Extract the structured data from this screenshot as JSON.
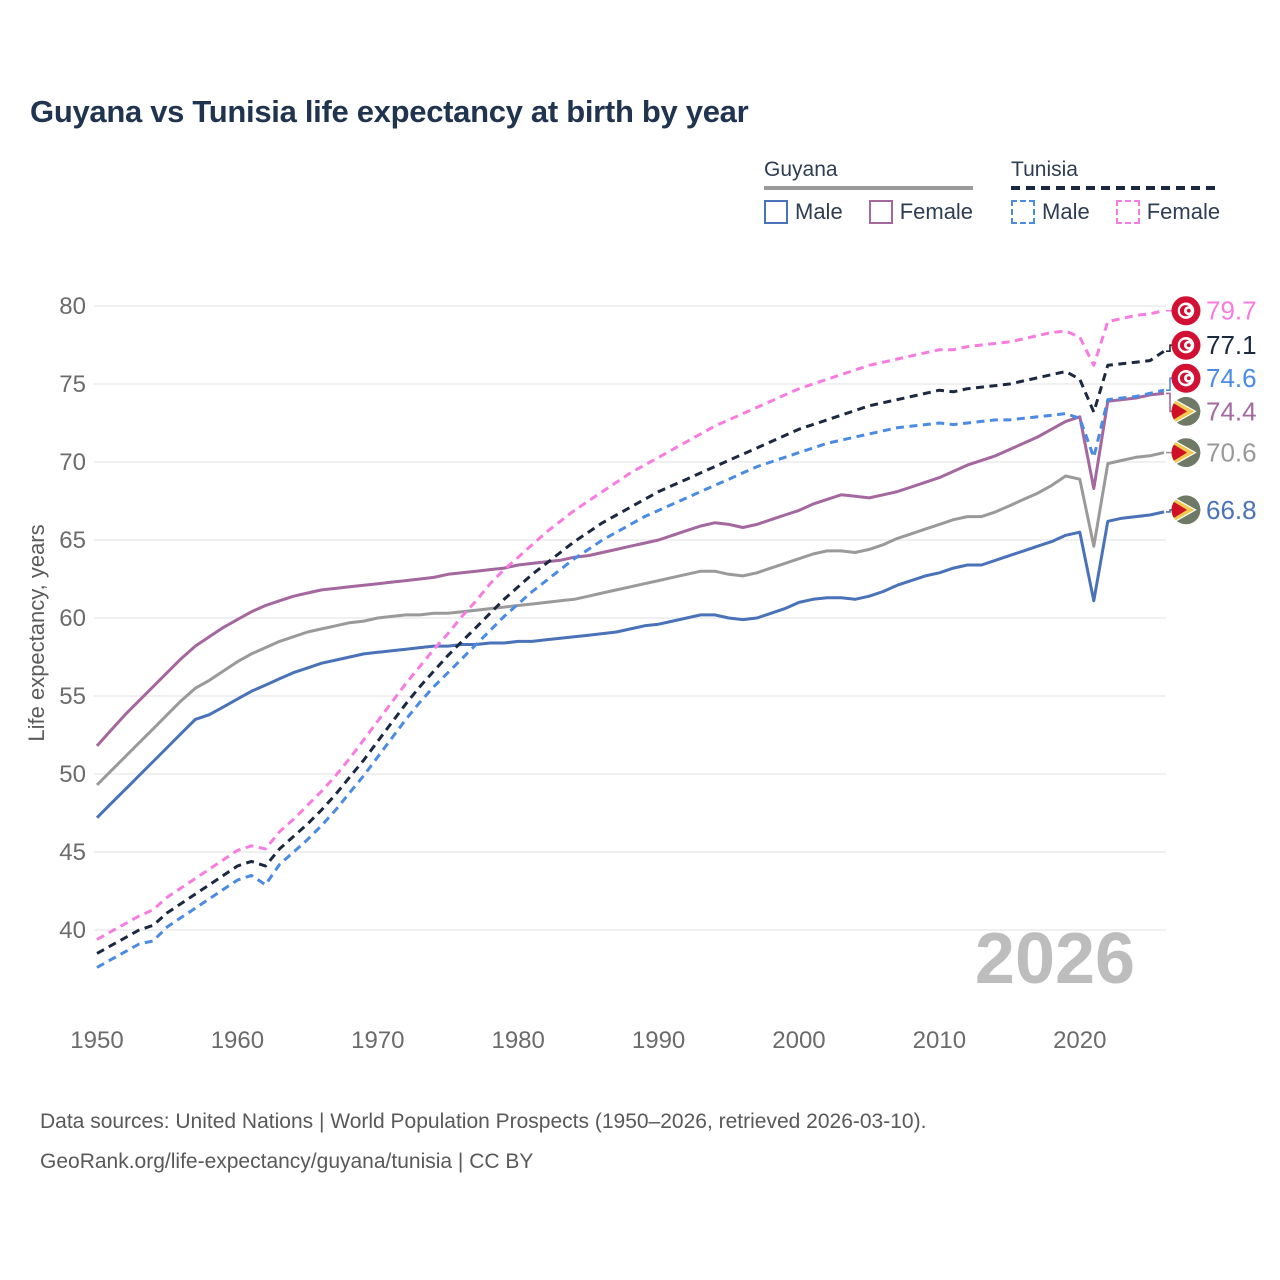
{
  "page": {
    "title": "Guyana vs Tunisia life expectancy at birth by year"
  },
  "legend": {
    "groups": [
      {
        "label": "Guyana",
        "line_style": "solid",
        "underline_color": "#9a9a9a",
        "items": [
          {
            "label": "Male",
            "color": "#4a72b8"
          },
          {
            "label": "Female",
            "color": "#a4679e"
          }
        ]
      },
      {
        "label": "Tunisia",
        "line_style": "dashed",
        "underline_color": "#1b2940",
        "items": [
          {
            "label": "Male",
            "color": "#4a8be4"
          },
          {
            "label": "Female",
            "color": "#f87ce0"
          }
        ]
      }
    ]
  },
  "axes": {
    "y_title": "Life expectancy, years",
    "y_ticks": [
      40,
      45,
      50,
      55,
      60,
      65,
      70,
      75,
      80
    ],
    "x_ticks": [
      1950,
      1960,
      1970,
      1980,
      1990,
      2000,
      2010,
      2020
    ]
  },
  "watermark": "2026",
  "footer": {
    "line1": "Data sources: United Nations | World Population Prospects (1950–2026, retrieved 2026-03-10).",
    "link": "GeoRank.org/life-expectancy/guyana/tunisia",
    "suffix": " | CC BY"
  },
  "colors": {
    "title": "#20344f",
    "tick_label": "#6b6b6b",
    "axis_title": "#5c5c5c",
    "gridline": "#e7e7e7",
    "watermark": "#bdbdbd",
    "footer": "#595959",
    "tunisia_flag_red": "#d21034",
    "guyana_flag_green": "#6e7a66",
    "guyana_flag_yellow": "#f2c94c",
    "guyana_flag_red": "#ce1126"
  },
  "chart_data": {
    "type": "line",
    "title": "Guyana vs Tunisia life expectancy at birth by year",
    "xlabel": "",
    "ylabel": "Life expectancy, years",
    "x_start": 1950,
    "x_end": 2026,
    "x_step": 1,
    "ylim": [
      36,
      82
    ],
    "grid": true,
    "series": [
      {
        "name": "Guyana All",
        "country": "Guyana",
        "sex": "All",
        "style": "solid",
        "color": "#9a9a9a",
        "end_label": "70.6",
        "flag": "guyana",
        "label_dy": 0,
        "values": [
          49.3,
          50.2,
          51.1,
          52.0,
          52.9,
          53.8,
          54.7,
          55.5,
          56.0,
          56.6,
          57.2,
          57.7,
          58.1,
          58.5,
          58.8,
          59.1,
          59.3,
          59.5,
          59.7,
          59.8,
          60.0,
          60.1,
          60.2,
          60.2,
          60.3,
          60.3,
          60.4,
          60.5,
          60.6,
          60.7,
          60.8,
          60.9,
          61.0,
          61.1,
          61.2,
          61.4,
          61.6,
          61.8,
          62.0,
          62.2,
          62.4,
          62.6,
          62.8,
          63.0,
          63.0,
          62.8,
          62.7,
          62.9,
          63.2,
          63.5,
          63.8,
          64.1,
          64.3,
          64.3,
          64.2,
          64.4,
          64.7,
          65.1,
          65.4,
          65.7,
          66.0,
          66.3,
          66.5,
          66.5,
          66.8,
          67.2,
          67.6,
          68.0,
          68.5,
          69.1,
          68.9,
          64.6,
          69.9,
          70.1,
          70.3,
          70.4,
          70.6
        ]
      },
      {
        "name": "Guyana Male",
        "country": "Guyana",
        "sex": "Male",
        "style": "solid",
        "color": "#4a72b8",
        "end_label": "66.8",
        "flag": "guyana",
        "label_dy": -2,
        "values": [
          47.2,
          48.1,
          49.0,
          49.9,
          50.8,
          51.7,
          52.6,
          53.5,
          53.8,
          54.3,
          54.8,
          55.3,
          55.7,
          56.1,
          56.5,
          56.8,
          57.1,
          57.3,
          57.5,
          57.7,
          57.8,
          57.9,
          58.0,
          58.1,
          58.2,
          58.2,
          58.3,
          58.3,
          58.4,
          58.4,
          58.5,
          58.5,
          58.6,
          58.7,
          58.8,
          58.9,
          59.0,
          59.1,
          59.3,
          59.5,
          59.6,
          59.8,
          60.0,
          60.2,
          60.2,
          60.0,
          59.9,
          60.0,
          60.3,
          60.6,
          61.0,
          61.2,
          61.3,
          61.3,
          61.2,
          61.4,
          61.7,
          62.1,
          62.4,
          62.7,
          62.9,
          63.2,
          63.4,
          63.4,
          63.7,
          64.0,
          64.3,
          64.6,
          64.9,
          65.3,
          65.5,
          61.1,
          66.2,
          66.4,
          66.5,
          66.6,
          66.8
        ]
      },
      {
        "name": "Guyana Female",
        "country": "Guyana",
        "sex": "Female",
        "style": "solid",
        "color": "#a4679e",
        "end_label": "74.4",
        "flag": "guyana",
        "label_dy": 18,
        "values": [
          51.8,
          52.8,
          53.8,
          54.7,
          55.6,
          56.5,
          57.4,
          58.2,
          58.8,
          59.4,
          59.9,
          60.4,
          60.8,
          61.1,
          61.4,
          61.6,
          61.8,
          61.9,
          62.0,
          62.1,
          62.2,
          62.3,
          62.4,
          62.5,
          62.6,
          62.8,
          62.9,
          63.0,
          63.1,
          63.2,
          63.4,
          63.5,
          63.6,
          63.7,
          63.9,
          64.0,
          64.2,
          64.4,
          64.6,
          64.8,
          65.0,
          65.3,
          65.6,
          65.9,
          66.1,
          66.0,
          65.8,
          66.0,
          66.3,
          66.6,
          66.9,
          67.3,
          67.6,
          67.9,
          67.8,
          67.7,
          67.9,
          68.1,
          68.4,
          68.7,
          69.0,
          69.4,
          69.8,
          70.1,
          70.4,
          70.8,
          71.2,
          71.6,
          72.1,
          72.6,
          72.9,
          68.3,
          73.9,
          74.0,
          74.1,
          74.3,
          74.4
        ]
      },
      {
        "name": "Tunisia All",
        "country": "Tunisia",
        "sex": "All",
        "style": "dashed",
        "color": "#1b2940",
        "end_label": "77.1",
        "flag": "tunisia",
        "label_dy": -6,
        "values": [
          38.5,
          39.0,
          39.5,
          40.0,
          40.3,
          41.1,
          41.7,
          42.3,
          42.9,
          43.5,
          44.1,
          44.4,
          44.1,
          45.2,
          46.0,
          46.8,
          47.7,
          48.7,
          49.8,
          50.9,
          52.1,
          53.3,
          54.5,
          55.6,
          56.6,
          57.6,
          58.5,
          59.4,
          60.3,
          61.2,
          62.0,
          62.8,
          63.5,
          64.2,
          64.9,
          65.5,
          66.1,
          66.6,
          67.1,
          67.6,
          68.1,
          68.5,
          68.9,
          69.3,
          69.7,
          70.1,
          70.5,
          70.9,
          71.3,
          71.7,
          72.1,
          72.4,
          72.7,
          73.0,
          73.3,
          73.6,
          73.8,
          74.0,
          74.2,
          74.4,
          74.6,
          74.5,
          74.7,
          74.8,
          74.9,
          75.0,
          75.2,
          75.4,
          75.6,
          75.8,
          75.3,
          73.2,
          76.2,
          76.3,
          76.4,
          76.5,
          77.1
        ]
      },
      {
        "name": "Tunisia Male",
        "country": "Tunisia",
        "sex": "Male",
        "style": "dashed",
        "color": "#4a8be4",
        "end_label": "74.6",
        "flag": "tunisia",
        "label_dy": -12,
        "values": [
          37.6,
          38.1,
          38.6,
          39.1,
          39.3,
          40.2,
          40.8,
          41.4,
          42.0,
          42.6,
          43.2,
          43.5,
          42.9,
          44.2,
          45.0,
          45.8,
          46.7,
          47.7,
          48.8,
          49.9,
          51.1,
          52.3,
          53.5,
          54.6,
          55.6,
          56.5,
          57.4,
          58.3,
          59.2,
          60.1,
          60.9,
          61.7,
          62.4,
          63.1,
          63.8,
          64.4,
          65.0,
          65.5,
          66.0,
          66.5,
          66.9,
          67.3,
          67.7,
          68.1,
          68.5,
          68.9,
          69.3,
          69.7,
          70.0,
          70.3,
          70.6,
          70.9,
          71.2,
          71.4,
          71.6,
          71.8,
          72.0,
          72.2,
          72.3,
          72.4,
          72.5,
          72.4,
          72.5,
          72.6,
          72.7,
          72.7,
          72.8,
          72.9,
          73.0,
          73.1,
          72.8,
          70.3,
          74.0,
          74.1,
          74.2,
          74.4,
          74.6
        ]
      },
      {
        "name": "Tunisia Female",
        "country": "Tunisia",
        "sex": "Female",
        "style": "dashed",
        "color": "#f87ce0",
        "end_label": "79.7",
        "flag": "tunisia",
        "label_dy": 0,
        "values": [
          39.4,
          39.9,
          40.4,
          40.9,
          41.3,
          42.1,
          42.7,
          43.3,
          43.9,
          44.5,
          45.1,
          45.4,
          45.2,
          46.3,
          47.1,
          48.0,
          48.9,
          49.9,
          51.0,
          52.2,
          53.4,
          54.6,
          55.8,
          56.9,
          58.0,
          59.0,
          60.1,
          61.1,
          62.2,
          63.1,
          63.9,
          64.7,
          65.5,
          66.2,
          66.9,
          67.5,
          68.1,
          68.7,
          69.3,
          69.8,
          70.3,
          70.8,
          71.3,
          71.8,
          72.3,
          72.7,
          73.1,
          73.5,
          73.9,
          74.3,
          74.7,
          75.0,
          75.3,
          75.6,
          75.9,
          76.2,
          76.4,
          76.6,
          76.8,
          77.0,
          77.2,
          77.2,
          77.4,
          77.5,
          77.6,
          77.7,
          77.9,
          78.1,
          78.3,
          78.4,
          78.0,
          76.2,
          79.0,
          79.2,
          79.4,
          79.5,
          79.7
        ]
      }
    ]
  }
}
